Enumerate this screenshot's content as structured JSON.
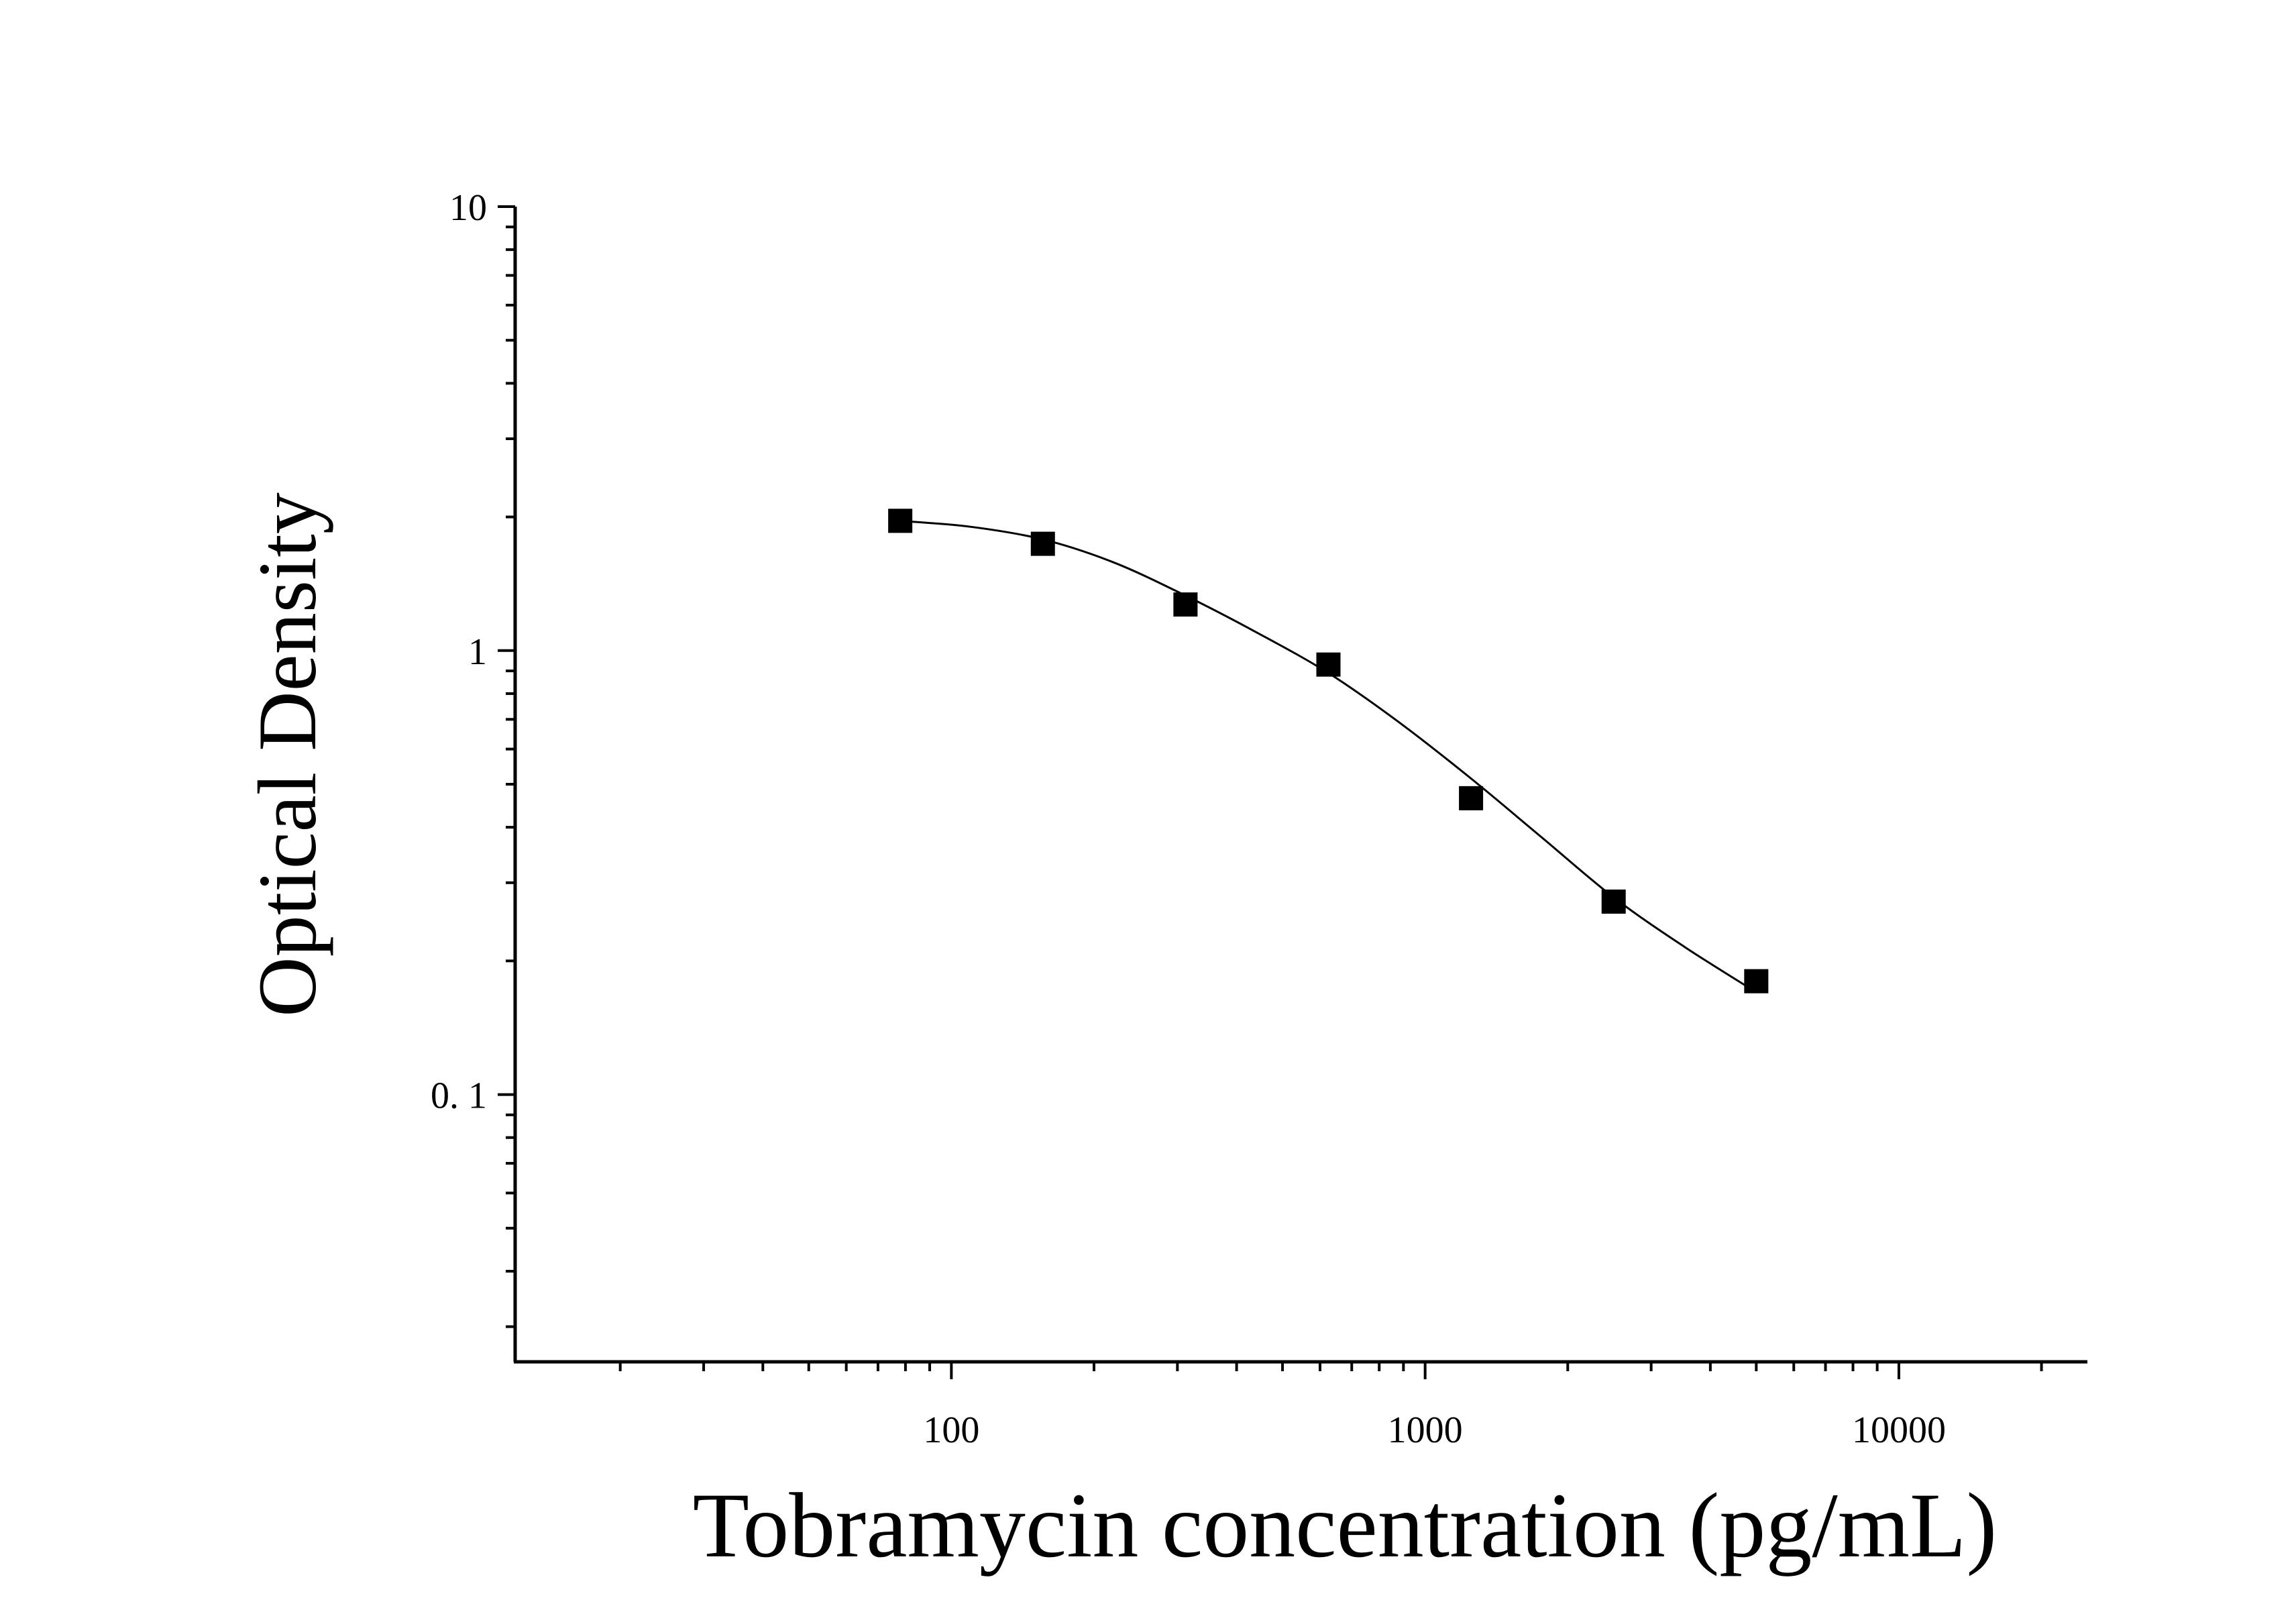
{
  "chart_data": {
    "type": "scatter",
    "xlabel": "Tobramycin concentration (pg/mL)",
    "ylabel": "Optical Density",
    "x_scale": "log",
    "y_scale": "log",
    "xlim": [
      12,
      25000
    ],
    "ylim": [
      0.025,
      10
    ],
    "grid": false,
    "x_ticks": [
      {
        "value": 100,
        "label": "100"
      },
      {
        "value": 1000,
        "label": "1000"
      },
      {
        "value": 10000,
        "label": "10000"
      }
    ],
    "y_ticks": [
      {
        "value": 0.1,
        "label": "0. 1"
      },
      {
        "value": 1,
        "label": "1"
      },
      {
        "value": 10,
        "label": "10"
      }
    ],
    "series": [
      {
        "marker": "square",
        "color": "#000000",
        "x": [
          78,
          156,
          312,
          625,
          1250,
          2500,
          5000
        ],
        "y": [
          1.96,
          1.74,
          1.27,
          0.93,
          0.465,
          0.272,
          0.18
        ],
        "fit_curve": [
          [
            78,
            1.96
          ],
          [
            110,
            1.9
          ],
          [
            156,
            1.78
          ],
          [
            220,
            1.58
          ],
          [
            312,
            1.33
          ],
          [
            440,
            1.1
          ],
          [
            625,
            0.89
          ],
          [
            880,
            0.69
          ],
          [
            1250,
            0.515
          ],
          [
            1760,
            0.38
          ],
          [
            2500,
            0.278
          ],
          [
            3530,
            0.215
          ],
          [
            5000,
            0.17
          ]
        ]
      }
    ]
  }
}
